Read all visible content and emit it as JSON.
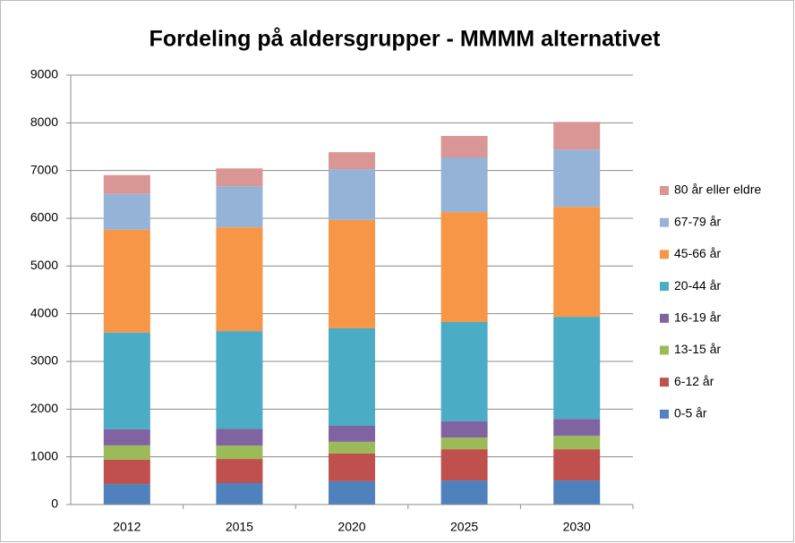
{
  "chart_data": {
    "type": "stacked_bar",
    "title": "Fordeling på aldersgrupper - MMMM alternativet",
    "categories": [
      "2012",
      "2015",
      "2020",
      "2025",
      "2030"
    ],
    "series": [
      {
        "name": "0-5 år",
        "color": "#4f81bd",
        "values": [
          430,
          450,
          490,
          505,
          505
        ]
      },
      {
        "name": "6-12 år",
        "color": "#c0504d",
        "values": [
          510,
          505,
          580,
          655,
          655
        ]
      },
      {
        "name": "13-15 år",
        "color": "#9bbb59",
        "values": [
          300,
          280,
          245,
          245,
          280
        ]
      },
      {
        "name": "16-19 år",
        "color": "#8064a2",
        "values": [
          340,
          355,
          335,
          340,
          355
        ]
      },
      {
        "name": "20-44 år",
        "color": "#4bacc6",
        "values": [
          2025,
          2045,
          2045,
          2080,
          2140
        ]
      },
      {
        "name": "45-66 år",
        "color": "#f79646",
        "values": [
          2155,
          2175,
          2270,
          2305,
          2305
        ]
      },
      {
        "name": "67-79 år",
        "color": "#95b3d7",
        "values": [
          750,
          860,
          1065,
          1145,
          1200
        ]
      },
      {
        "name": "80 år eller eldre",
        "color": "#d99694",
        "values": [
          395,
          375,
          355,
          450,
          580
        ]
      }
    ],
    "ylim": [
      0,
      9000
    ],
    "yticks": [
      0,
      1000,
      2000,
      3000,
      4000,
      5000,
      6000,
      7000,
      8000,
      9000
    ],
    "grid": true,
    "legend": "right"
  }
}
